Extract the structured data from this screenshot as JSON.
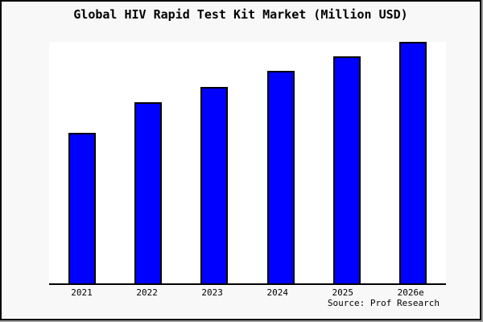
{
  "figure": {
    "background": "#f8f8f8",
    "frame_border_color": "#000000",
    "shadow_color": "#9e9e9e"
  },
  "chart_data": {
    "type": "bar",
    "title": "Global HIV Rapid Test Kit Market (Million USD)",
    "categories": [
      "2021",
      "2022",
      "2023",
      "2024",
      "2025",
      "2026e"
    ],
    "values": [
      62.5,
      75,
      81.5,
      88,
      94,
      100
    ],
    "value_units": "relative height, tallest bar = 100 (no y-axis scale shown)",
    "xlabel": "",
    "ylabel": "",
    "ylim": [
      0,
      100
    ],
    "grid": false,
    "legend": null,
    "bar_fill": "#0000ff",
    "bar_border": "#000000",
    "plot_background": "#ffffff"
  },
  "source": {
    "text": "Source: Prof Research"
  }
}
